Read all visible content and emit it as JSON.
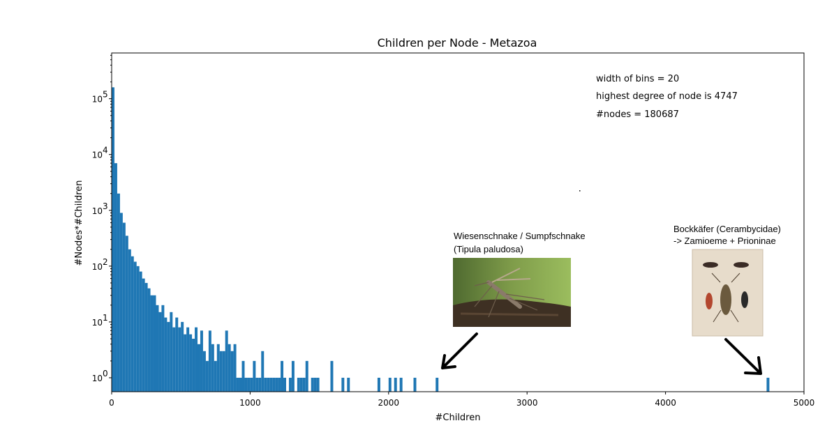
{
  "chart_data": {
    "type": "bar",
    "title": "Children per Node - Metazoa",
    "xlabel": "#Children",
    "ylabel": "#Nodes*#Children",
    "xlim": [
      0,
      5000
    ],
    "ylim_log10": [
      -0.25,
      5.82
    ],
    "y_scale": "log",
    "bin_width": 20,
    "bar_color": "#1f77b4",
    "x_ticks": [
      0,
      1000,
      2000,
      3000,
      4000,
      5000
    ],
    "y_ticks": [
      {
        "base": "10",
        "exp": "0",
        "value": 1
      },
      {
        "base": "10",
        "exp": "1",
        "value": 10
      },
      {
        "base": "10",
        "exp": "2",
        "value": 100
      },
      {
        "base": "10",
        "exp": "3",
        "value": 1000
      },
      {
        "base": "10",
        "exp": "4",
        "value": 10000
      },
      {
        "base": "10",
        "exp": "5",
        "value": 100000
      }
    ],
    "bins": [
      {
        "x": 0,
        "y": 160000
      },
      {
        "x": 20,
        "y": 7000
      },
      {
        "x": 40,
        "y": 2000
      },
      {
        "x": 60,
        "y": 900
      },
      {
        "x": 80,
        "y": 600
      },
      {
        "x": 100,
        "y": 350
      },
      {
        "x": 120,
        "y": 200
      },
      {
        "x": 140,
        "y": 150
      },
      {
        "x": 160,
        "y": 120
      },
      {
        "x": 180,
        "y": 100
      },
      {
        "x": 200,
        "y": 80
      },
      {
        "x": 220,
        "y": 60
      },
      {
        "x": 240,
        "y": 50
      },
      {
        "x": 260,
        "y": 40
      },
      {
        "x": 280,
        "y": 30
      },
      {
        "x": 300,
        "y": 30
      },
      {
        "x": 320,
        "y": 20
      },
      {
        "x": 340,
        "y": 15
      },
      {
        "x": 360,
        "y": 20
      },
      {
        "x": 380,
        "y": 12
      },
      {
        "x": 400,
        "y": 10
      },
      {
        "x": 420,
        "y": 15
      },
      {
        "x": 440,
        "y": 8
      },
      {
        "x": 460,
        "y": 12
      },
      {
        "x": 480,
        "y": 8
      },
      {
        "x": 500,
        "y": 10
      },
      {
        "x": 520,
        "y": 6
      },
      {
        "x": 540,
        "y": 8
      },
      {
        "x": 560,
        "y": 6
      },
      {
        "x": 580,
        "y": 5
      },
      {
        "x": 600,
        "y": 8
      },
      {
        "x": 620,
        "y": 4
      },
      {
        "x": 640,
        "y": 7
      },
      {
        "x": 660,
        "y": 3
      },
      {
        "x": 680,
        "y": 2
      },
      {
        "x": 700,
        "y": 7
      },
      {
        "x": 720,
        "y": 4
      },
      {
        "x": 740,
        "y": 2
      },
      {
        "x": 760,
        "y": 4
      },
      {
        "x": 780,
        "y": 3
      },
      {
        "x": 800,
        "y": 3
      },
      {
        "x": 820,
        "y": 7
      },
      {
        "x": 840,
        "y": 4
      },
      {
        "x": 860,
        "y": 3
      },
      {
        "x": 880,
        "y": 4
      },
      {
        "x": 900,
        "y": 1
      },
      {
        "x": 920,
        "y": 1
      },
      {
        "x": 940,
        "y": 2
      },
      {
        "x": 960,
        "y": 1
      },
      {
        "x": 980,
        "y": 1
      },
      {
        "x": 1000,
        "y": 1
      },
      {
        "x": 1020,
        "y": 2
      },
      {
        "x": 1040,
        "y": 1
      },
      {
        "x": 1060,
        "y": 1
      },
      {
        "x": 1080,
        "y": 3
      },
      {
        "x": 1100,
        "y": 1
      },
      {
        "x": 1120,
        "y": 1
      },
      {
        "x": 1140,
        "y": 1
      },
      {
        "x": 1160,
        "y": 1
      },
      {
        "x": 1180,
        "y": 1
      },
      {
        "x": 1200,
        "y": 1
      },
      {
        "x": 1220,
        "y": 2
      },
      {
        "x": 1240,
        "y": 1
      },
      {
        "x": 1280,
        "y": 1
      },
      {
        "x": 1300,
        "y": 2
      },
      {
        "x": 1340,
        "y": 1
      },
      {
        "x": 1360,
        "y": 1
      },
      {
        "x": 1380,
        "y": 1
      },
      {
        "x": 1400,
        "y": 2
      },
      {
        "x": 1440,
        "y": 1
      },
      {
        "x": 1460,
        "y": 1
      },
      {
        "x": 1480,
        "y": 1
      },
      {
        "x": 1580,
        "y": 2
      },
      {
        "x": 1660,
        "y": 1
      },
      {
        "x": 1700,
        "y": 1
      },
      {
        "x": 1920,
        "y": 1
      },
      {
        "x": 2000,
        "y": 1
      },
      {
        "x": 2040,
        "y": 1
      },
      {
        "x": 2080,
        "y": 1
      },
      {
        "x": 2180,
        "y": 1
      },
      {
        "x": 2340,
        "y": 1
      },
      {
        "x": 4730,
        "y": 1
      }
    ]
  },
  "annotations": {
    "bin_width_text": "width of bins = 20",
    "highest_degree_text": "highest degree of node is 4747",
    "nodes_text": "#nodes = 180687"
  },
  "insets": {
    "crane_fly": {
      "caption_line1": "Wiesenschnake / Sumpfschnake",
      "caption_line2": "(Tipula paludosa)"
    },
    "longhorn_beetle": {
      "caption_line1": "Bockkäfer (Cerambycidae)",
      "caption_line2": "-> Zamioeme + Prioninae"
    }
  }
}
